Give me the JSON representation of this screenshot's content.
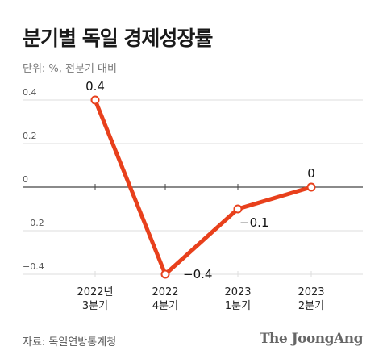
{
  "header": {
    "title": "분기별 독일 경제성장률",
    "subtitle": "단위: %, 전분기 대비"
  },
  "footer": {
    "source": "자료: 독일연방통계청",
    "brand": "The JoongAng"
  },
  "colors": {
    "line": "#e8401c",
    "marker_fill": "#ffffff",
    "grid": "#dddddd",
    "zero_line": "#444444",
    "tick_text": "#555555",
    "label_text": "#111111"
  },
  "chart_data": {
    "type": "line",
    "title": "분기별 독일 경제성장률",
    "subtitle": "단위: %, 전분기 대비",
    "categories": [
      [
        "2022년",
        "3분기"
      ],
      [
        "2022",
        "4분기"
      ],
      [
        "2023",
        "1분기"
      ],
      [
        "2023",
        "2분기"
      ]
    ],
    "series": [
      {
        "values": [
          0.4,
          -0.4,
          -0.1,
          0
        ]
      }
    ],
    "data_labels": [
      "0.4",
      "−0.4",
      "−0.1",
      "0"
    ],
    "yticks": [
      0.4,
      0.2,
      0,
      -0.2,
      -0.4
    ],
    "ytick_labels": [
      "0.4",
      "0.2",
      "0",
      "−0.2",
      "−0.4"
    ],
    "ylim": [
      -0.4,
      0.4
    ],
    "grid": true,
    "legend": "none"
  }
}
